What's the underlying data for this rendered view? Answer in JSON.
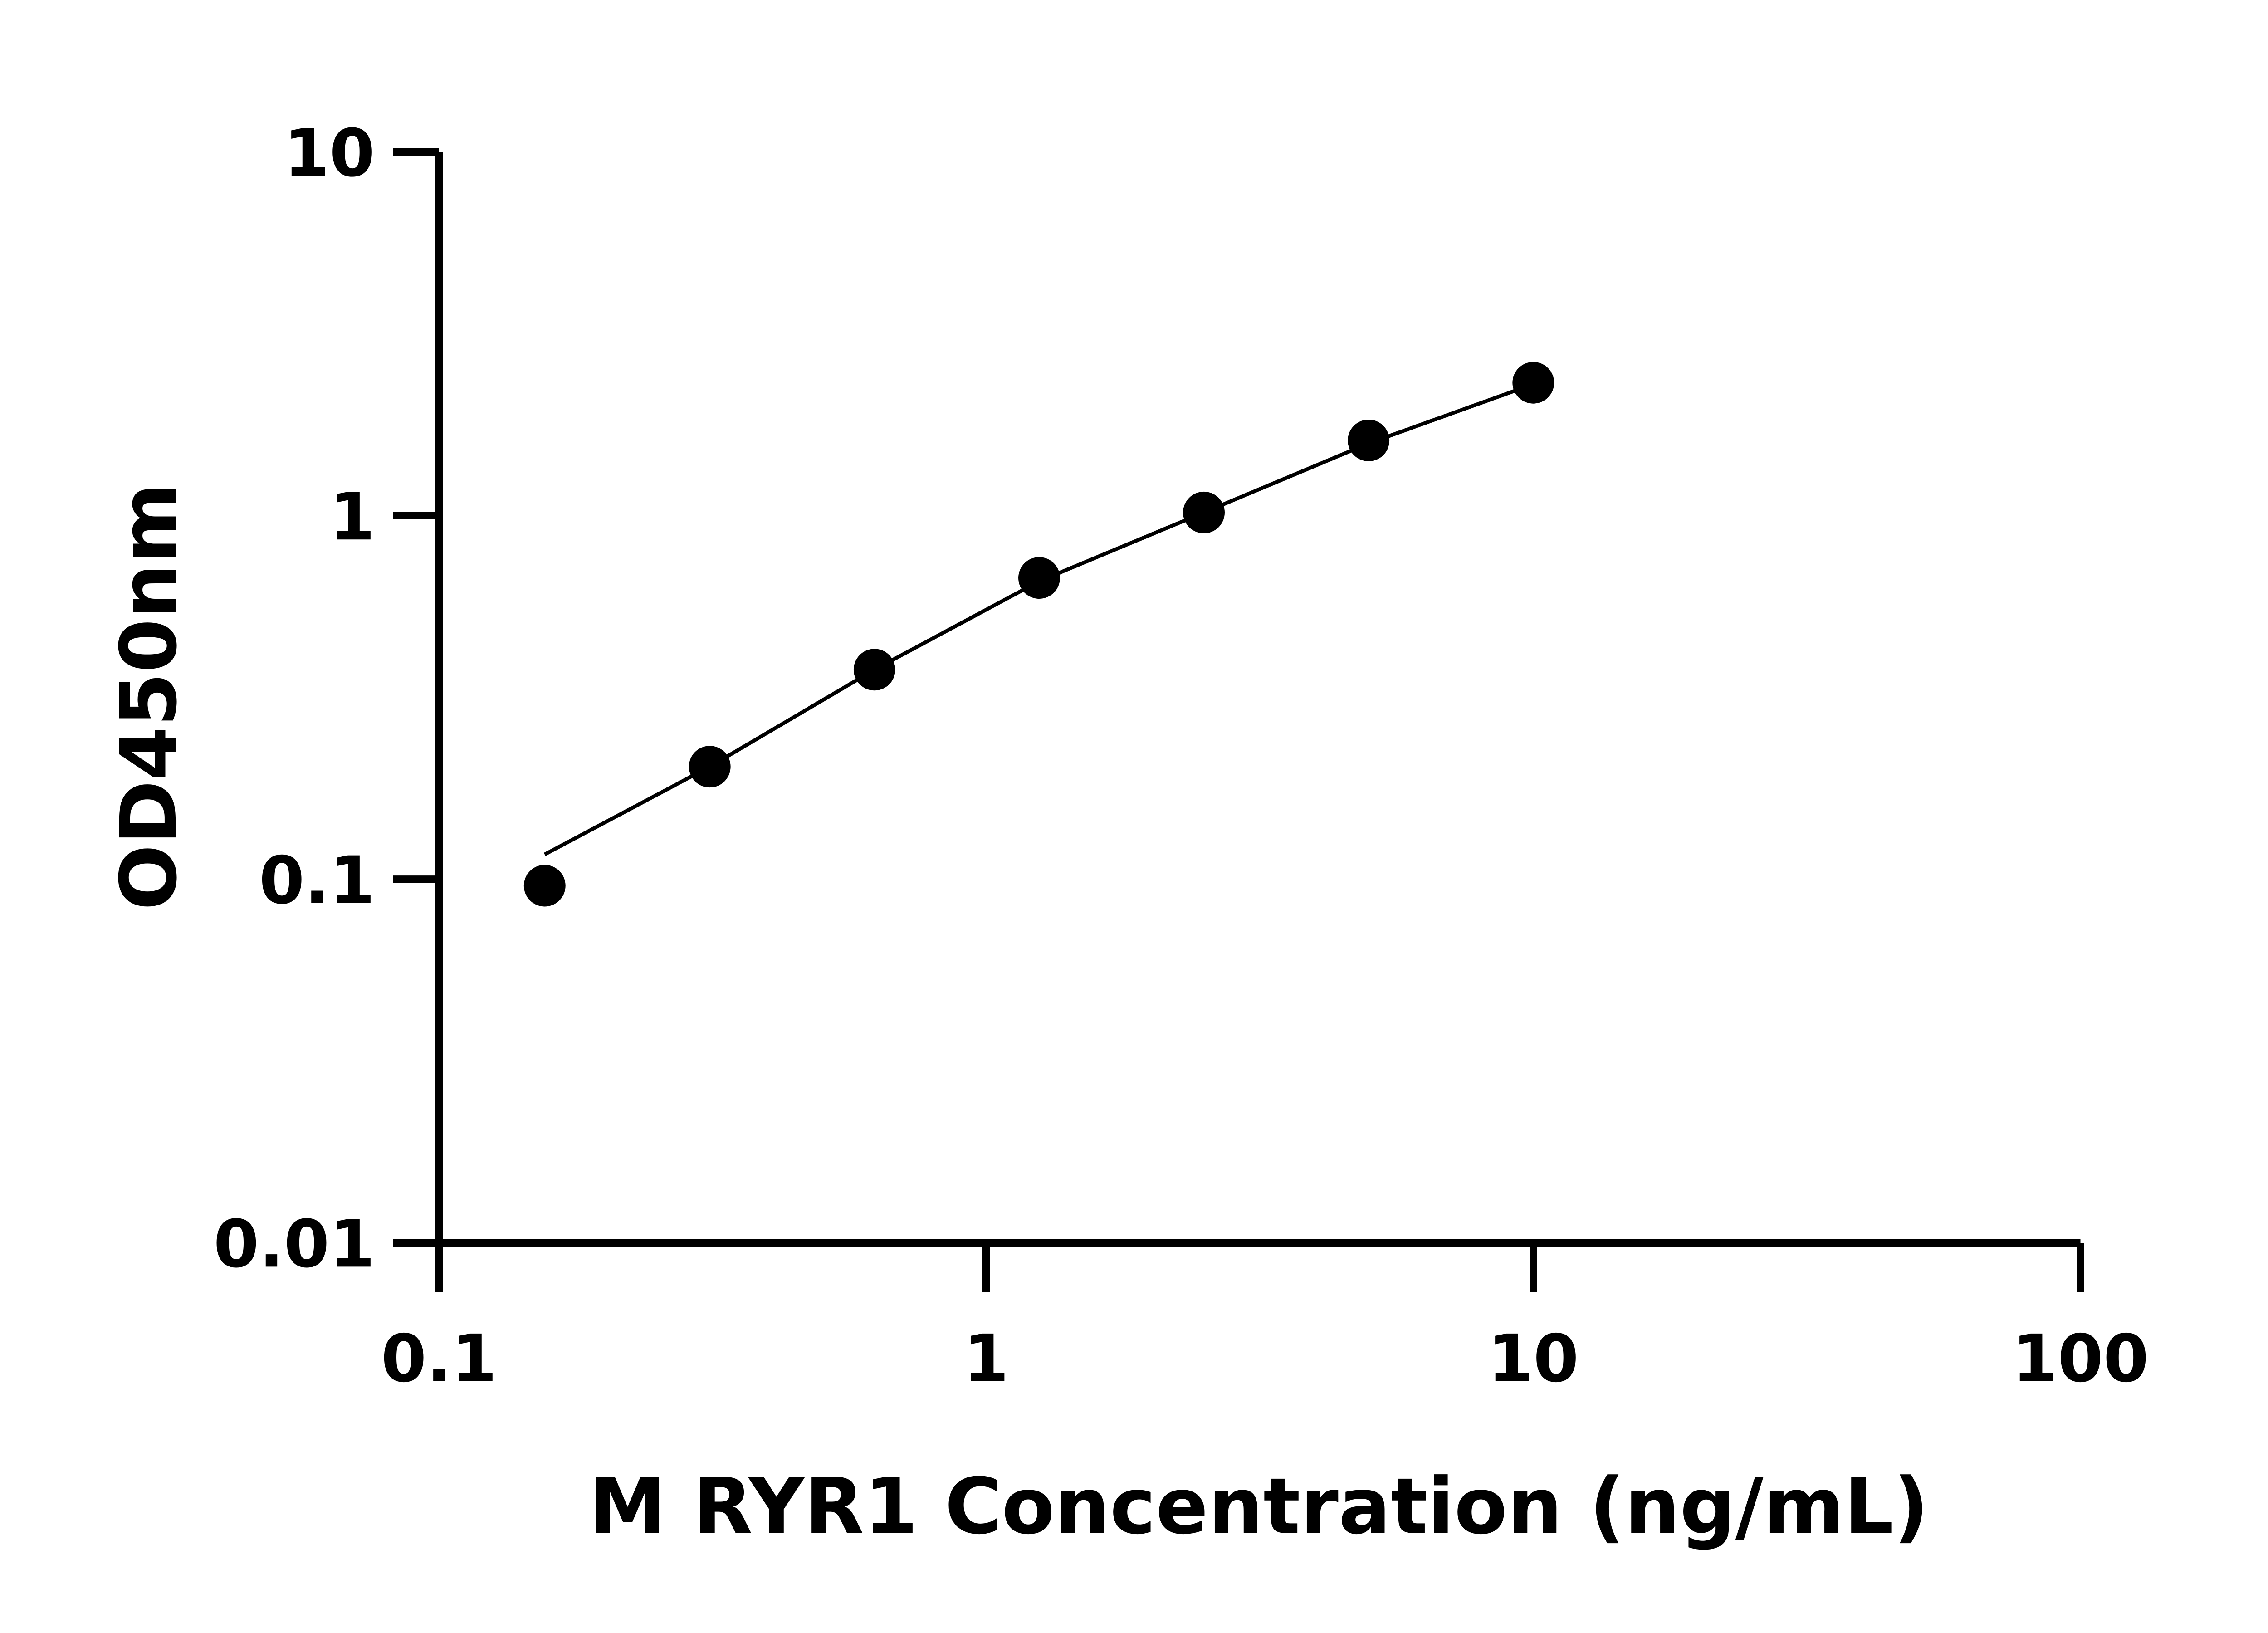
{
  "chart_data": {
    "type": "scatter",
    "title": "",
    "xlabel": "M RYR1 Concentration (ng/mL)",
    "ylabel": "OD450nm",
    "x_scale": "log",
    "y_scale": "log",
    "xlim": [
      0.1,
      100
    ],
    "ylim": [
      0.01,
      10
    ],
    "x_ticks": [
      "0.1",
      "1",
      "10",
      "100"
    ],
    "y_ticks": [
      "0.01",
      "0.1",
      "1",
      "10"
    ],
    "x_tick_values": [
      0.1,
      1,
      10,
      100
    ],
    "y_tick_values": [
      0.01,
      0.1,
      1,
      10
    ],
    "grid": false,
    "marker_color": "#000000",
    "series": [
      {
        "x": [
          0.156,
          0.3125,
          0.625,
          1.25,
          2.5,
          5,
          10
        ],
        "y": [
          0.096,
          0.204,
          0.377,
          0.674,
          1.02,
          1.61,
          2.32
        ]
      }
    ],
    "fit_curve": {
      "x": [
        0.156,
        0.3125,
        0.625,
        1.25,
        2.5,
        5,
        10
      ],
      "y": [
        0.117,
        0.204,
        0.377,
        0.66,
        1.02,
        1.58,
        2.3
      ]
    }
  }
}
